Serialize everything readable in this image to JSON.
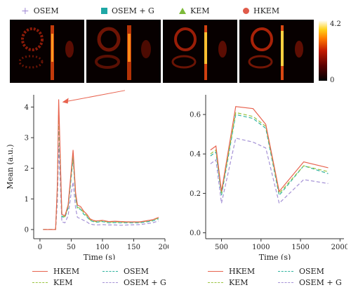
{
  "top_legend": [
    {
      "label": "OSEM",
      "marker": "plus",
      "color": "#a58fd6"
    },
    {
      "label": "OSEM + G",
      "marker": "square",
      "color": "#1fa7a5"
    },
    {
      "label": "KEM",
      "marker": "triangle",
      "color": "#7dba3a"
    },
    {
      "label": "HKEM",
      "marker": "circle",
      "color": "#e05b4a"
    }
  ],
  "colorbar": {
    "max_label": "4.2",
    "min_label": "0"
  },
  "series_styles": {
    "HKEM": {
      "color": "#e8634f",
      "dash": "none"
    },
    "KEM": {
      "color": "#9ac441",
      "dash": "5,3"
    },
    "OSEM": {
      "color": "#2fb39e",
      "dash": "5,3"
    },
    "OSEM + G": {
      "color": "#a592d6",
      "dash": "5,3"
    }
  },
  "chart_data": [
    {
      "type": "line",
      "xlabel": "Time (s)",
      "ylabel": "Mean (a.u.)",
      "xlim": [
        -10,
        200
      ],
      "ylim": [
        -0.3,
        4.4
      ],
      "xticks": [
        0,
        50,
        100,
        150,
        200
      ],
      "yticks": [
        0,
        1,
        2,
        3,
        4
      ],
      "annotation": "arrow pointing to first peak",
      "series": [
        {
          "name": "HKEM",
          "x": [
            5,
            15,
            25,
            28,
            30,
            35,
            40,
            45,
            50,
            53,
            57,
            60,
            65,
            70,
            75,
            80,
            85,
            90,
            100,
            110,
            120,
            130,
            140,
            160,
            180,
            190
          ],
          "y": [
            0,
            0,
            0,
            1.5,
            4.25,
            0.5,
            0.45,
            0.8,
            1.9,
            2.6,
            1.2,
            0.8,
            0.75,
            0.6,
            0.5,
            0.35,
            0.3,
            0.28,
            0.3,
            0.26,
            0.27,
            0.26,
            0.25,
            0.25,
            0.32,
            0.4
          ]
        },
        {
          "name": "KEM",
          "x": [
            5,
            15,
            25,
            28,
            30,
            35,
            40,
            45,
            50,
            53,
            57,
            60,
            65,
            70,
            75,
            80,
            85,
            90,
            100,
            110,
            120,
            130,
            140,
            160,
            180,
            190
          ],
          "y": [
            0,
            0,
            0,
            1.4,
            3.95,
            0.45,
            0.42,
            0.75,
            1.8,
            2.45,
            1.1,
            0.72,
            0.7,
            0.55,
            0.45,
            0.32,
            0.28,
            0.26,
            0.28,
            0.24,
            0.25,
            0.24,
            0.24,
            0.24,
            0.3,
            0.38
          ]
        },
        {
          "name": "OSEM",
          "x": [
            5,
            15,
            25,
            28,
            30,
            35,
            40,
            45,
            50,
            53,
            57,
            60,
            65,
            70,
            75,
            80,
            85,
            90,
            100,
            110,
            120,
            130,
            140,
            160,
            180,
            190
          ],
          "y": [
            0,
            0,
            0,
            1.3,
            3.6,
            0.42,
            0.4,
            0.7,
            1.7,
            2.35,
            1.05,
            0.68,
            0.66,
            0.5,
            0.42,
            0.3,
            0.26,
            0.24,
            0.26,
            0.22,
            0.23,
            0.22,
            0.22,
            0.22,
            0.28,
            0.35
          ]
        },
        {
          "name": "OSEM + G",
          "x": [
            5,
            15,
            25,
            28,
            30,
            35,
            40,
            45,
            50,
            53,
            57,
            60,
            65,
            70,
            75,
            80,
            85,
            90,
            100,
            110,
            120,
            130,
            140,
            160,
            180,
            190
          ],
          "y": [
            0,
            0,
            0,
            0.9,
            2.75,
            0.25,
            0.22,
            0.45,
            1.2,
            1.55,
            0.7,
            0.4,
            0.35,
            0.3,
            0.25,
            0.18,
            0.16,
            0.15,
            0.16,
            0.15,
            0.15,
            0.14,
            0.15,
            0.16,
            0.22,
            0.28
          ]
        }
      ]
    },
    {
      "type": "line",
      "xlabel": "Time (s)",
      "ylabel": "",
      "xlim": [
        300,
        2050
      ],
      "ylim": [
        -0.03,
        0.7
      ],
      "xticks": [
        500,
        1000,
        1500,
        2000
      ],
      "yticks": [
        0.0,
        0.2,
        0.4,
        0.6
      ],
      "series": [
        {
          "name": "HKEM",
          "x": [
            360,
            430,
            500,
            680,
            900,
            1060,
            1230,
            1540,
            1850
          ],
          "y": [
            0.42,
            0.44,
            0.21,
            0.64,
            0.63,
            0.55,
            0.21,
            0.36,
            0.33
          ]
        },
        {
          "name": "KEM",
          "x": [
            360,
            430,
            500,
            680,
            900,
            1060,
            1230,
            1540,
            1850
          ],
          "y": [
            0.4,
            0.42,
            0.2,
            0.61,
            0.59,
            0.54,
            0.2,
            0.34,
            0.31
          ]
        },
        {
          "name": "OSEM",
          "x": [
            360,
            430,
            500,
            680,
            900,
            1060,
            1230,
            1540,
            1850
          ],
          "y": [
            0.39,
            0.41,
            0.19,
            0.6,
            0.58,
            0.53,
            0.19,
            0.34,
            0.3
          ]
        },
        {
          "name": "OSEM + G",
          "x": [
            360,
            430,
            500,
            680,
            900,
            1060,
            1230,
            1540,
            1850
          ],
          "y": [
            0.35,
            0.37,
            0.15,
            0.48,
            0.46,
            0.43,
            0.15,
            0.27,
            0.25
          ]
        }
      ]
    }
  ],
  "bottom_legend": [
    {
      "label": "HKEM"
    },
    {
      "label": "OSEM"
    },
    {
      "label": "KEM"
    },
    {
      "label": "OSEM + G"
    }
  ]
}
